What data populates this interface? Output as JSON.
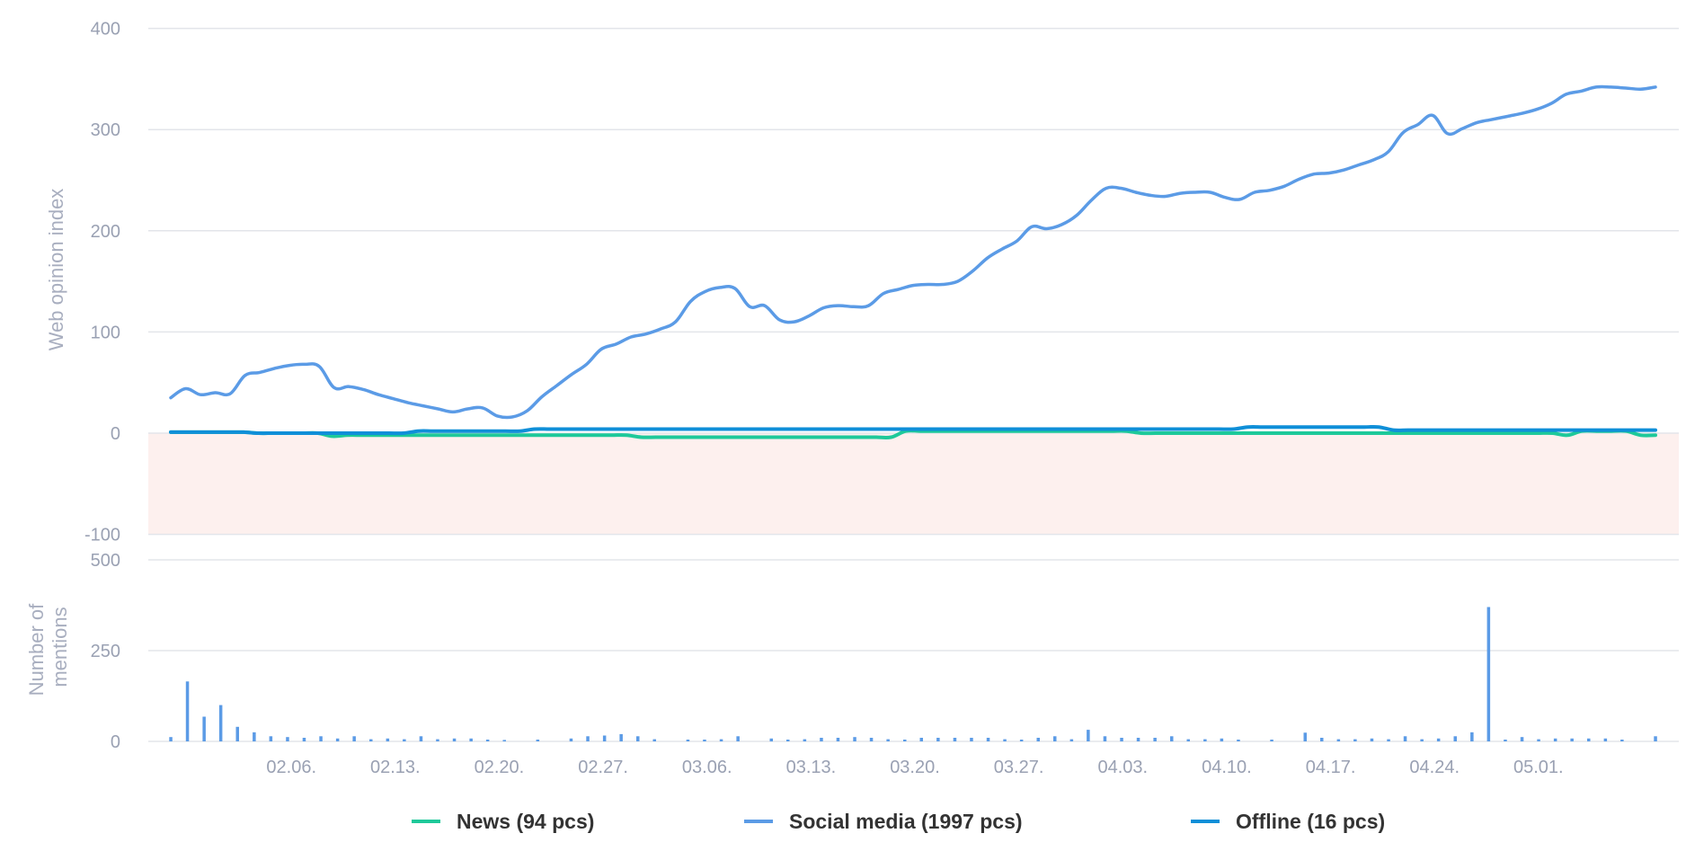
{
  "chart_data": [
    {
      "type": "line",
      "ylabel": "Web opinion index",
      "xlabel": "",
      "ylim": [
        -100,
        400
      ],
      "yticks": [
        400,
        300,
        200,
        100,
        0,
        -100
      ],
      "negative_band": {
        "from": -100,
        "to": 0,
        "color": "#fdf0ee"
      },
      "grid": true,
      "x_start_date": "01.29.",
      "x_step_days": 1,
      "xtick_labels": [
        "02.06.",
        "02.13.",
        "02.20.",
        "02.27.",
        "03.06.",
        "03.13.",
        "03.20.",
        "03.27.",
        "04.03.",
        "04.10.",
        "04.17.",
        "04.24.",
        "05.01."
      ],
      "series": [
        {
          "name": "Social media (1997 pcs)",
          "color": "#5b9be6",
          "values": [
            35,
            44,
            38,
            40,
            39,
            57,
            60,
            64,
            67,
            68,
            66,
            45,
            46,
            43,
            38,
            34,
            30,
            27,
            24,
            21,
            24,
            25,
            17,
            16,
            22,
            36,
            47,
            58,
            68,
            83,
            88,
            95,
            98,
            103,
            110,
            130,
            140,
            144,
            143,
            125,
            126,
            112,
            110,
            116,
            124,
            126,
            125,
            126,
            138,
            142,
            146,
            147,
            147,
            150,
            160,
            173,
            182,
            190,
            204,
            202,
            206,
            215,
            230,
            242,
            242,
            238,
            235,
            234,
            237,
            238,
            238,
            233,
            231,
            238,
            240,
            244,
            251,
            256,
            257,
            260,
            265,
            270,
            278,
            297,
            305,
            314,
            296,
            301,
            307,
            310,
            313,
            316,
            320,
            326,
            335,
            338,
            342,
            342,
            341,
            340,
            342
          ]
        },
        {
          "name": "News (94 pcs)",
          "color": "#1ec99a",
          "values": [
            1,
            1,
            1,
            1,
            1,
            1,
            0,
            0,
            0,
            0,
            0,
            -3,
            -2,
            -2,
            -2,
            -2,
            -2,
            -2,
            -2,
            -2,
            -2,
            -2,
            -2,
            -2,
            -2,
            -2,
            -2,
            -2,
            -2,
            -2,
            -2,
            -2,
            -4,
            -4,
            -4,
            -4,
            -4,
            -4,
            -4,
            -4,
            -4,
            -4,
            -4,
            -4,
            -4,
            -4,
            -4,
            -4,
            -4,
            -4,
            2,
            2,
            2,
            2,
            2,
            2,
            2,
            2,
            2,
            2,
            2,
            2,
            2,
            2,
            2,
            2,
            0,
            0,
            0,
            0,
            0,
            0,
            0,
            0,
            0,
            0,
            0,
            0,
            0,
            0,
            0,
            0,
            0,
            0,
            0,
            0,
            0,
            0,
            0,
            0,
            0,
            0,
            0,
            0,
            0,
            -2,
            2,
            2,
            2,
            2,
            -2,
            -2
          ]
        },
        {
          "name": "Offline (16 pcs)",
          "color": "#0f8fd8",
          "values": [
            1,
            1,
            1,
            1,
            1,
            1,
            0,
            0,
            0,
            0,
            0,
            0,
            0,
            0,
            0,
            0,
            0,
            2,
            2,
            2,
            2,
            2,
            2,
            2,
            2,
            4,
            4,
            4,
            4,
            4,
            4,
            4,
            4,
            4,
            4,
            4,
            4,
            4,
            4,
            4,
            4,
            4,
            4,
            4,
            4,
            4,
            4,
            4,
            4,
            4,
            4,
            4,
            4,
            4,
            4,
            4,
            4,
            4,
            4,
            4,
            4,
            4,
            4,
            4,
            4,
            4,
            4,
            4,
            4,
            4,
            4,
            4,
            4,
            4,
            6,
            6,
            6,
            6,
            6,
            6,
            6,
            6,
            6,
            6,
            3,
            3,
            3,
            3,
            3,
            3,
            3,
            3,
            3,
            3,
            3,
            3,
            3,
            3,
            3,
            3,
            3,
            3,
            3
          ]
        }
      ]
    },
    {
      "type": "bar",
      "ylabel": "Number of mentions",
      "xlabel": "",
      "ylim": [
        0,
        500
      ],
      "yticks": [
        500,
        250,
        0
      ],
      "grid": true,
      "bar_color": "#5b9be6",
      "values": [
        12,
        0,
        165,
        0,
        68,
        0,
        100,
        0,
        40,
        0,
        25,
        0,
        14,
        0,
        12,
        0,
        10,
        0,
        14,
        0,
        8,
        0,
        14,
        0,
        6,
        0,
        8,
        0,
        6,
        0,
        14,
        0,
        6,
        0,
        8,
        0,
        8,
        0,
        5,
        0,
        4,
        0,
        0,
        0,
        5,
        0,
        0,
        0,
        8,
        0,
        14,
        0,
        16,
        0,
        20,
        0,
        14,
        0,
        6,
        0,
        0,
        0,
        5,
        0,
        5,
        0,
        6,
        0,
        14,
        0,
        0,
        0,
        8,
        0,
        5,
        0,
        6,
        0,
        10,
        0,
        10,
        0,
        12,
        0,
        10,
        0,
        6,
        0,
        5,
        0,
        10,
        0,
        10,
        0,
        10,
        0,
        10,
        0,
        10,
        0,
        6,
        0,
        5,
        0,
        10,
        0,
        14,
        0,
        6,
        0,
        32,
        0,
        14,
        0,
        10,
        0,
        10,
        0,
        10,
        0,
        14,
        0,
        6,
        0,
        6,
        0,
        8,
        0,
        5,
        0,
        0,
        0,
        5,
        0,
        0,
        0,
        24,
        0,
        10,
        0,
        6,
        0,
        6,
        0,
        8,
        0,
        6,
        0,
        14,
        0,
        6,
        0,
        8,
        0,
        14,
        0,
        25,
        0,
        370,
        0,
        5,
        0,
        12,
        0,
        6,
        0,
        8,
        0,
        8,
        0,
        8,
        0,
        8,
        0,
        5,
        0,
        0,
        0,
        14
      ]
    }
  ],
  "legend": [
    {
      "label": "News (94 pcs)",
      "color": "#1ec99a"
    },
    {
      "label": "Social media (1997 pcs)",
      "color": "#5b9be6"
    },
    {
      "label": "Offline (16 pcs)",
      "color": "#0f8fd8"
    }
  ],
  "ylabel2_lines": [
    "Number of",
    "mentions"
  ]
}
